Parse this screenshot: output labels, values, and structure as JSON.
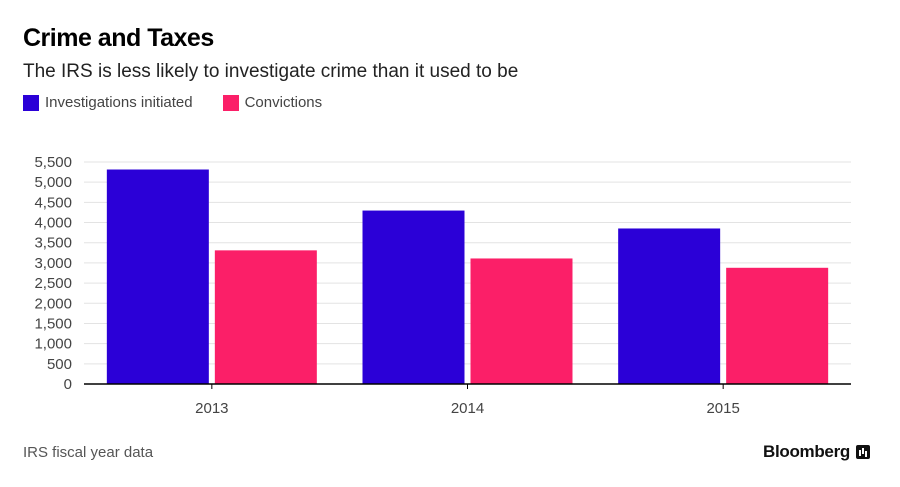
{
  "title": "Crime and Taxes",
  "subtitle": "The IRS is less likely to investigate crime than it used to be",
  "legend": [
    {
      "label": "Investigations initiated",
      "color": "#2b00d7"
    },
    {
      "label": "Convictions",
      "color": "#fb1f68"
    }
  ],
  "footer": {
    "note": "IRS fiscal year data",
    "brand": "Bloomberg",
    "brand_icon": "bloomberg-chart-icon"
  },
  "chart_data": {
    "type": "bar",
    "categories": [
      "2013",
      "2014",
      "2015"
    ],
    "series": [
      {
        "name": "Investigations initiated",
        "color": "#2b00d7",
        "values": [
          5314,
          4297,
          3853
        ]
      },
      {
        "name": "Convictions",
        "color": "#fb1f68",
        "values": [
          3311,
          3110,
          2879
        ]
      }
    ],
    "ylim": [
      0,
      5500
    ],
    "yticks": [
      0,
      500,
      1000,
      1500,
      2000,
      2500,
      3000,
      3500,
      4000,
      4500,
      5000,
      5500
    ],
    "ytick_labels": [
      "0",
      "500",
      "1,000",
      "1,500",
      "2,000",
      "2,500",
      "3,000",
      "3,500",
      "4,000",
      "4,500",
      "5,000",
      "5,500"
    ],
    "grid": true,
    "legend_position": "top-left"
  }
}
